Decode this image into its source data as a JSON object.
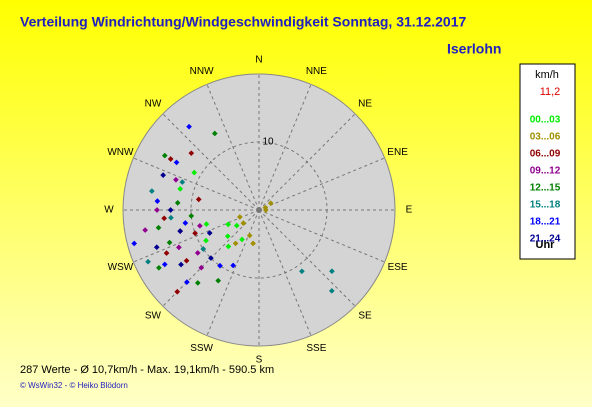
{
  "chart_data": {
    "type": "polar-scatter",
    "title": "Verteilung Windrichtung/Windgeschwindigkeit  Sonntag, 31.12.2017",
    "location": "Iserlohn",
    "direction_labels": [
      "N",
      "NNE",
      "NE",
      "ENE",
      "E",
      "ESE",
      "SE",
      "SSE",
      "S",
      "SSW",
      "SW",
      "WSW",
      "W",
      "WNW",
      "NW",
      "NNW"
    ],
    "xlim": [
      0,
      360
    ],
    "rlim": [
      0,
      20
    ],
    "rticks": [
      10
    ],
    "legend_title": "km/h",
    "legend_value": "11,2",
    "legend_footer": "Uhr",
    "series": [
      {
        "name": "00...03",
        "color": "#00ee00",
        "x": [
          235,
          230,
          245,
          220,
          300,
          285,
          255,
          240,
          210
        ],
        "values": [
          4,
          6,
          5,
          7,
          11,
          12,
          8,
          9,
          5
        ]
      },
      {
        "name": "03...06",
        "color": "#a09000",
        "x": [
          70,
          90,
          60,
          230,
          200,
          250,
          215,
          190
        ],
        "values": [
          1,
          1,
          2,
          3,
          4,
          3,
          6,
          5
        ]
      },
      {
        "name": "06...09",
        "color": "#900000",
        "x": [
          310,
          300,
          265,
          255,
          245,
          235,
          225,
          250,
          280
        ],
        "values": [
          13,
          15,
          14,
          12,
          15,
          13,
          17,
          10,
          9
        ]
      },
      {
        "name": "09...12",
        "color": "#900090",
        "x": [
          270,
          260,
          245,
          235,
          225,
          290,
          255
        ],
        "values": [
          15,
          17,
          13,
          11,
          12,
          13,
          9
        ]
      },
      {
        "name": "12...15",
        "color": "#008000",
        "x": [
          330,
          300,
          275,
          260,
          240,
          220,
          210,
          265,
          250
        ],
        "values": [
          13,
          16,
          12,
          15,
          17,
          14,
          12,
          10,
          14
        ]
      },
      {
        "name": "15...18",
        "color": "#008080",
        "x": [
          130,
          138,
          145,
          280,
          265,
          245,
          235,
          290
        ],
        "values": [
          14,
          16,
          11,
          16,
          13,
          18,
          10,
          12
        ]
      },
      {
        "name": "18...21",
        "color": "#0000ff",
        "x": [
          320,
          300,
          275,
          255,
          240,
          225,
          215,
          205,
          260
        ],
        "values": [
          16,
          14,
          15,
          19,
          16,
          15,
          10,
          9,
          11
        ]
      },
      {
        "name": "21...24",
        "color": "#000090",
        "x": [
          290,
          270,
          250,
          235,
          225,
          255,
          245
        ],
        "values": [
          15,
          13,
          16,
          14,
          10,
          12,
          8
        ]
      }
    ],
    "footer": "287 Werte   -   Ø 10,7km/h  -  Max. 19,1km/h  -   590.5 km",
    "copyright": "© WsWin32  -  © Heiko Blödorn"
  }
}
